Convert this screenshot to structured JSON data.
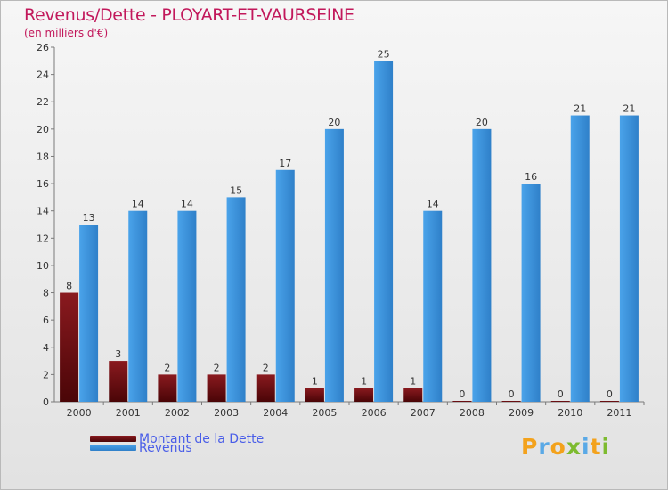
{
  "title": "Revenus/Dette - PLOYART-ET-VAURSEINE",
  "subtitle": "(en milliers d'€)",
  "colors": {
    "dette": "#6b0a0d",
    "revenus": "#3a92dd",
    "title": "#c2185b",
    "legend_text": "#4a5ee8"
  },
  "legend": [
    {
      "label": "Montant de la Dette",
      "color": "#6b0a0d"
    },
    {
      "label": "Revenus",
      "color": "#3a92dd"
    }
  ],
  "logo": {
    "text": "Proxiti"
  },
  "chart_data": {
    "type": "bar",
    "title": "Revenus/Dette - PLOYART-ET-VAURSEINE",
    "ylabel": "(en milliers d'€)",
    "xlabel": "",
    "categories": [
      "2000",
      "2001",
      "2002",
      "2003",
      "2004",
      "2005",
      "2006",
      "2007",
      "2008",
      "2009",
      "2010",
      "2011"
    ],
    "series": [
      {
        "name": "Montant de la Dette",
        "values": [
          8,
          3,
          2,
          2,
          2,
          1,
          1,
          1,
          0,
          0,
          0,
          0
        ]
      },
      {
        "name": "Revenus",
        "values": [
          13,
          14,
          14,
          15,
          17,
          20,
          25,
          14,
          20,
          16,
          21,
          21
        ]
      }
    ],
    "ylim": [
      0,
      26
    ],
    "yticks": [
      0,
      2,
      4,
      6,
      8,
      10,
      12,
      14,
      16,
      18,
      20,
      22,
      24,
      26
    ],
    "grid": false,
    "legend_position": "bottom-left"
  }
}
